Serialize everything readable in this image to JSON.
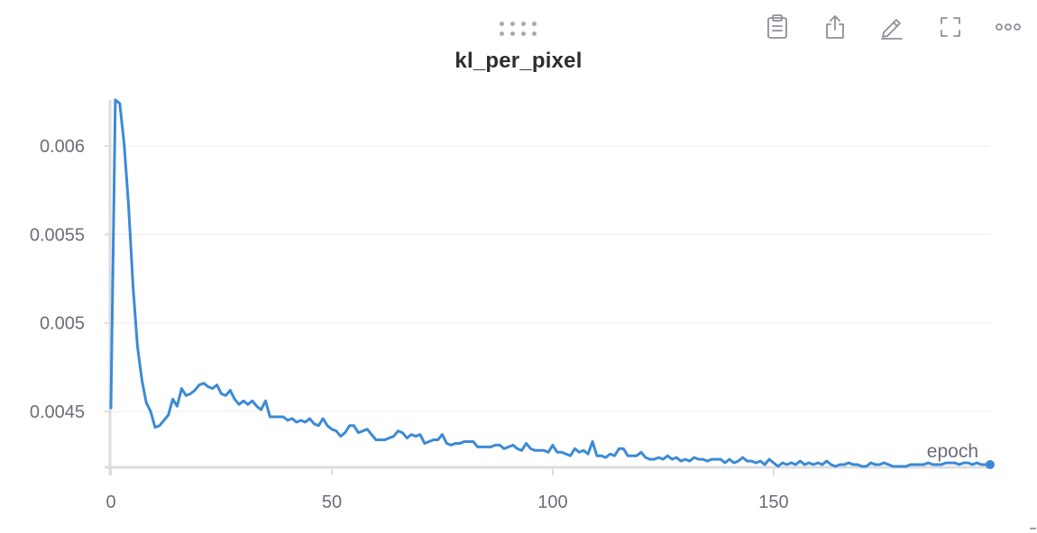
{
  "panel": {
    "title": "kl_per_pixel",
    "toolbar": [
      {
        "name": "clipboard-icon",
        "label": "Copy"
      },
      {
        "name": "share-icon",
        "label": "Export"
      },
      {
        "name": "pencil-icon",
        "label": "Edit"
      },
      {
        "name": "fullscreen-icon",
        "label": "Fullscreen"
      },
      {
        "name": "more-icon",
        "label": "More"
      }
    ]
  },
  "chart_data": {
    "type": "line",
    "title": "kl_per_pixel",
    "xlabel": "epoch",
    "ylabel": "",
    "xlim": [
      0,
      199
    ],
    "ylim": [
      0.00419,
      0.00626
    ],
    "x_ticks": [
      0,
      50,
      100,
      150
    ],
    "x_tick_labels": [
      "0",
      "50",
      "100",
      "150"
    ],
    "y_ticks": [
      0.0045,
      0.005,
      0.0055,
      0.006
    ],
    "y_tick_labels": [
      "0.0045",
      "0.005",
      "0.0055",
      "0.006"
    ],
    "grid": true,
    "legend": "none",
    "line_color": "#3c8ad6",
    "series": [
      {
        "values": [
          0.00452,
          0.00626,
          0.00624,
          0.00601,
          0.00566,
          0.00521,
          0.00487,
          0.00468,
          0.00455,
          0.0045,
          0.00441,
          0.00442,
          0.00445,
          0.00448,
          0.00457,
          0.00453,
          0.00463,
          0.00459,
          0.0046,
          0.00462,
          0.00465,
          0.00466,
          0.00464,
          0.00463,
          0.00465,
          0.0046,
          0.00459,
          0.00462,
          0.00457,
          0.00454,
          0.00456,
          0.00454,
          0.00456,
          0.00453,
          0.00451,
          0.00456,
          0.00447,
          0.00447,
          0.00447,
          0.00447,
          0.00445,
          0.00446,
          0.00444,
          0.00445,
          0.00444,
          0.00446,
          0.00443,
          0.00442,
          0.00446,
          0.00442,
          0.0044,
          0.00439,
          0.00436,
          0.00438,
          0.00442,
          0.00442,
          0.00438,
          0.00439,
          0.0044,
          0.00437,
          0.00434,
          0.00434,
          0.00434,
          0.00435,
          0.00436,
          0.00439,
          0.00438,
          0.00435,
          0.00437,
          0.00436,
          0.00437,
          0.00432,
          0.00433,
          0.00434,
          0.00434,
          0.00437,
          0.00432,
          0.00431,
          0.00432,
          0.00432,
          0.00433,
          0.00433,
          0.00433,
          0.0043,
          0.0043,
          0.0043,
          0.0043,
          0.00431,
          0.00431,
          0.00429,
          0.0043,
          0.00431,
          0.00429,
          0.00428,
          0.00432,
          0.00429,
          0.00428,
          0.00428,
          0.00428,
          0.00427,
          0.00431,
          0.00427,
          0.00427,
          0.00426,
          0.00425,
          0.00429,
          0.00427,
          0.00428,
          0.00426,
          0.00433,
          0.00425,
          0.00425,
          0.00424,
          0.00426,
          0.00425,
          0.00429,
          0.00429,
          0.00425,
          0.00425,
          0.00425,
          0.00427,
          0.00424,
          0.00423,
          0.00423,
          0.00424,
          0.00423,
          0.00425,
          0.00423,
          0.00424,
          0.00422,
          0.00423,
          0.00422,
          0.00424,
          0.00423,
          0.00423,
          0.00422,
          0.00423,
          0.00423,
          0.00423,
          0.00421,
          0.00423,
          0.00421,
          0.00422,
          0.00424,
          0.00422,
          0.00422,
          0.00421,
          0.00422,
          0.0042,
          0.00423,
          0.00421,
          0.00419,
          0.00421,
          0.0042,
          0.00421,
          0.0042,
          0.00422,
          0.0042,
          0.00421,
          0.0042,
          0.00421,
          0.0042,
          0.00422,
          0.0042,
          0.00419,
          0.0042,
          0.0042,
          0.00421,
          0.0042,
          0.0042,
          0.00419,
          0.00419,
          0.00421,
          0.0042,
          0.0042,
          0.00421,
          0.0042,
          0.00419,
          0.00419,
          0.00419,
          0.00419,
          0.0042,
          0.0042,
          0.0042,
          0.0042,
          0.00421,
          0.0042,
          0.0042,
          0.0042,
          0.00421,
          0.00421,
          0.00421,
          0.0042,
          0.00421,
          0.00421,
          0.0042,
          0.00421,
          0.0042,
          0.0042,
          0.0042
        ]
      }
    ]
  }
}
